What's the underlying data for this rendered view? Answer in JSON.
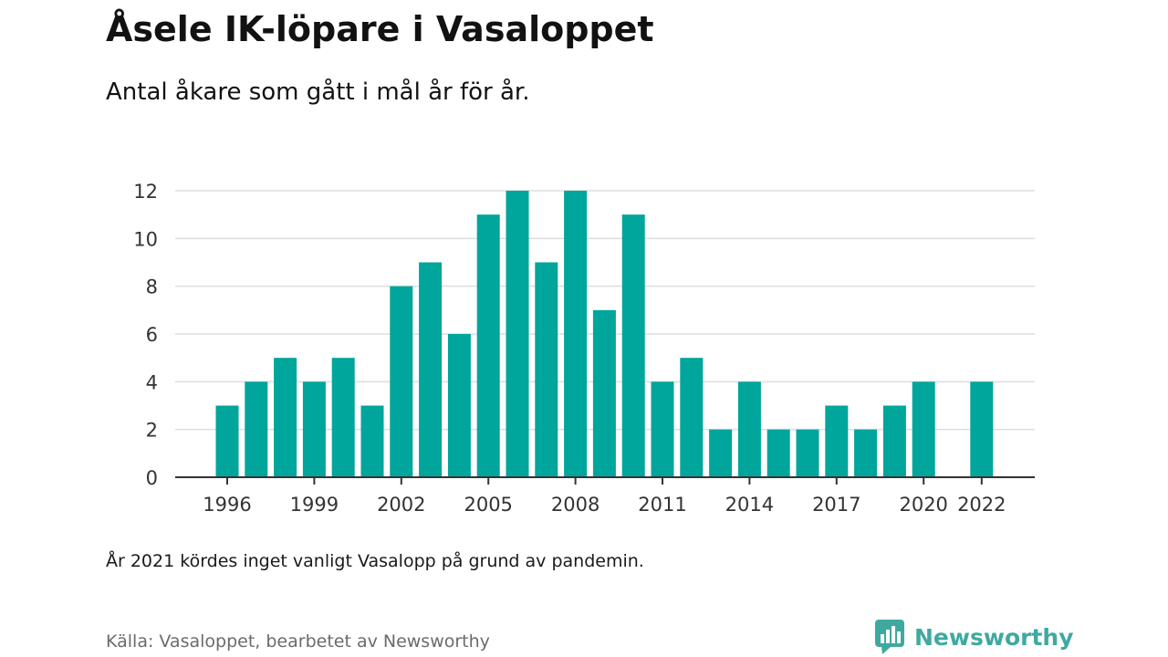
{
  "title": "Åsele IK-löpare i Vasaloppet",
  "subtitle": "Antal åkare som gått i mål år för år.",
  "note": "År 2021 kördes inget vanligt Vasalopp på grund av pandemin.",
  "source": "Källa: Vasaloppet, bearbetet av Newsworthy",
  "logo_text": "Newsworthy",
  "colors": {
    "bar": "#00a59b",
    "grid": "#dddddd",
    "axis": "#333333",
    "logo": "#3fa9a0"
  },
  "chart_data": {
    "type": "bar",
    "categories": [
      "1996",
      "1997",
      "1998",
      "1999",
      "2000",
      "2001",
      "2002",
      "2003",
      "2004",
      "2005",
      "2006",
      "2007",
      "2008",
      "2009",
      "2010",
      "2011",
      "2012",
      "2013",
      "2014",
      "2015",
      "2016",
      "2017",
      "2018",
      "2019",
      "2020",
      "2021",
      "2022"
    ],
    "values": [
      3,
      4,
      5,
      4,
      5,
      3,
      8,
      9,
      6,
      11,
      12,
      9,
      12,
      7,
      11,
      4,
      5,
      2,
      4,
      2,
      2,
      3,
      2,
      3,
      4,
      null,
      4
    ],
    "x_tick_labels": [
      "1996",
      "1999",
      "2002",
      "2005",
      "2008",
      "2011",
      "2014",
      "2017",
      "2020",
      "2022"
    ],
    "y_ticks": [
      0,
      2,
      4,
      6,
      8,
      10,
      12
    ],
    "ylim": [
      0,
      12
    ],
    "xlabel": "",
    "ylabel": "",
    "grid": true,
    "legend": "none"
  }
}
